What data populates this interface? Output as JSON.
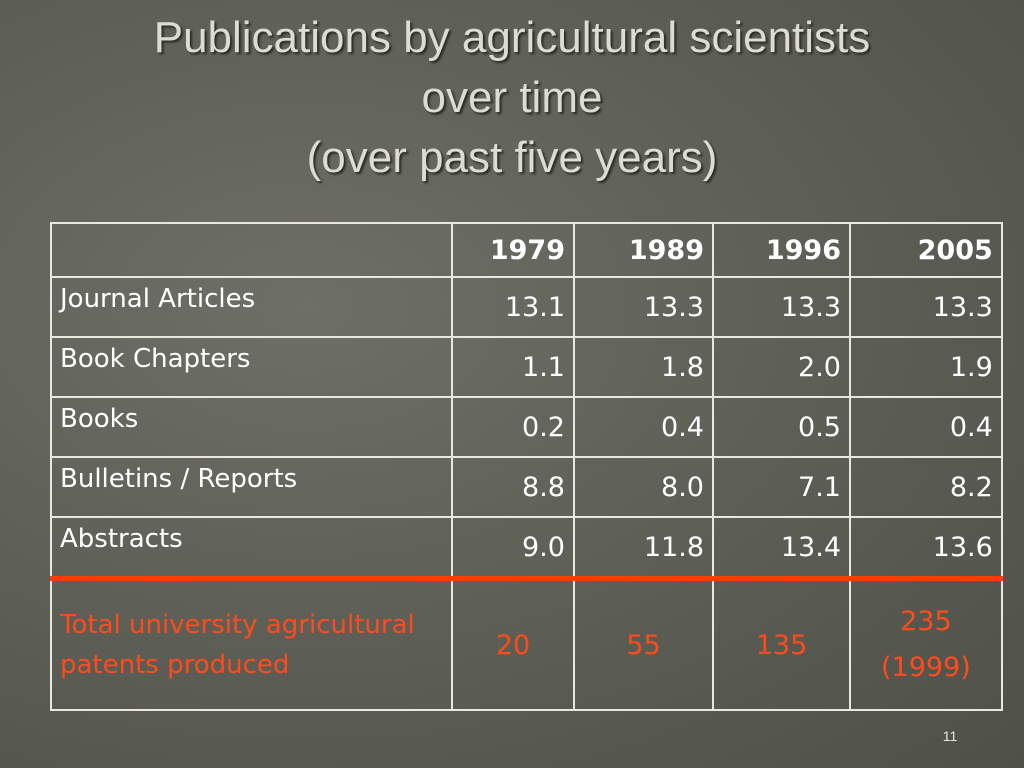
{
  "title": {
    "lines": [
      "Publications by agricultural scientists",
      "over time",
      "(over past five years)"
    ]
  },
  "table": {
    "header": [
      "1979",
      "1989",
      "1996",
      "2005"
    ],
    "rows": [
      {
        "label": "Journal Articles",
        "cells": [
          "13.1",
          "13.3",
          "13.3",
          "13.3"
        ]
      },
      {
        "label": "Book Chapters",
        "cells": [
          "1.1",
          "1.8",
          "2.0",
          "1.9"
        ]
      },
      {
        "label": "Books",
        "cells": [
          "0.2",
          "0.4",
          "0.5",
          "0.4"
        ]
      },
      {
        "label": "Bulletins / Reports",
        "cells": [
          "8.8",
          "8.0",
          "7.1",
          "8.2"
        ]
      },
      {
        "label": "Abstracts",
        "cells": [
          "9.0",
          "11.8",
          "13.4",
          "13.6"
        ]
      }
    ],
    "total_row": {
      "label": "Total university agricultural patents produced",
      "cells": [
        "20",
        "55",
        "135",
        "235 (1999)"
      ]
    }
  },
  "page_number": "11"
}
